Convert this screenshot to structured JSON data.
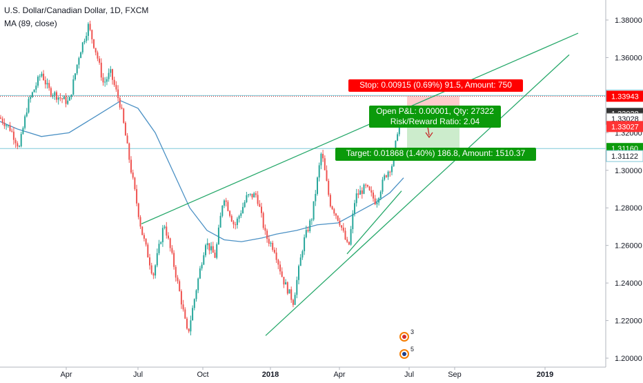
{
  "legend": {
    "title": "U.S. Dollar/Canadian Dollar, 1D, FXCM",
    "indicator": "MA (89, close)"
  },
  "colors": {
    "up": "#26a69a",
    "down": "#ef5350",
    "ma": "#4a90c4",
    "trendline": "#26a86a",
    "hline": "#7fc8d8",
    "stop_box": "#ff0000",
    "profit_box": "#0b9a0b",
    "last_price": "#333333"
  },
  "chart_data": {
    "type": "candlestick",
    "symbol": "USDCAD",
    "timeframe": "1D",
    "source": "FXCM",
    "x_ticks": [
      "Apr",
      "Jul",
      "Oct",
      "2018",
      "Apr",
      "Jul",
      "Sep",
      "2019"
    ],
    "y_ticks": [
      "1.38000",
      "1.36000",
      "1.34000",
      "1.32000",
      "1.30000",
      "1.28000",
      "1.26000",
      "1.24000",
      "1.22000",
      "1.20000"
    ],
    "ylim": [
      1.195,
      1.393
    ],
    "price_path": [
      [
        0,
        1.328
      ],
      [
        15,
        1.322
      ],
      [
        28,
        1.312
      ],
      [
        40,
        1.335
      ],
      [
        60,
        1.352
      ],
      [
        70,
        1.343
      ],
      [
        85,
        1.339
      ],
      [
        100,
        1.336
      ],
      [
        115,
        1.362
      ],
      [
        128,
        1.377
      ],
      [
        140,
        1.362
      ],
      [
        150,
        1.346
      ],
      [
        160,
        1.352
      ],
      [
        175,
        1.334
      ],
      [
        190,
        1.3
      ],
      [
        205,
        1.268
      ],
      [
        222,
        1.244
      ],
      [
        238,
        1.272
      ],
      [
        250,
        1.253
      ],
      [
        262,
        1.232
      ],
      [
        272,
        1.212
      ],
      [
        285,
        1.238
      ],
      [
        298,
        1.262
      ],
      [
        312,
        1.254
      ],
      [
        324,
        1.287
      ],
      [
        340,
        1.27
      ],
      [
        358,
        1.286
      ],
      [
        372,
        1.287
      ],
      [
        385,
        1.265
      ],
      [
        398,
        1.258
      ],
      [
        410,
        1.242
      ],
      [
        425,
        1.23
      ],
      [
        440,
        1.262
      ],
      [
        452,
        1.275
      ],
      [
        466,
        1.31
      ],
      [
        478,
        1.283
      ],
      [
        492,
        1.273
      ],
      [
        505,
        1.258
      ],
      [
        515,
        1.286
      ],
      [
        530,
        1.291
      ],
      [
        545,
        1.283
      ],
      [
        558,
        1.297
      ],
      [
        570,
        1.304
      ],
      [
        576,
        1.321
      ],
      [
        583,
        1.331
      ],
      [
        588,
        1.33
      ]
    ],
    "ma_points": [
      [
        0,
        1.326
      ],
      [
        25,
        1.322
      ],
      [
        60,
        1.318
      ],
      [
        100,
        1.32
      ],
      [
        140,
        1.329
      ],
      [
        175,
        1.337
      ],
      [
        200,
        1.333
      ],
      [
        225,
        1.32
      ],
      [
        250,
        1.3
      ],
      [
        275,
        1.28
      ],
      [
        300,
        1.268
      ],
      [
        325,
        1.263
      ],
      [
        350,
        1.262
      ],
      [
        380,
        1.264
      ],
      [
        400,
        1.266
      ],
      [
        430,
        1.268
      ],
      [
        460,
        1.271
      ],
      [
        490,
        1.272
      ],
      [
        520,
        1.278
      ],
      [
        545,
        1.283
      ],
      [
        565,
        1.288
      ],
      [
        585,
        1.296
      ]
    ],
    "trendlines": [
      {
        "name": "upper-channel-line",
        "from": [
          205,
          1.2715
        ],
        "to": [
          838,
          1.373
        ]
      },
      {
        "name": "lower-channel-line",
        "from": [
          385,
          1.212
        ],
        "to": [
          825,
          1.3615
        ]
      },
      {
        "name": "rising-support-line",
        "from": [
          503,
          1.2555
        ],
        "to": [
          582,
          1.289
        ]
      }
    ],
    "horizontal_lines": [
      1.33981,
      1.3116
    ],
    "last_price_line": 1.33943,
    "position": {
      "type": "short",
      "entry": 1.33028,
      "stop": 1.33943,
      "target": 1.3116,
      "x_start": 590,
      "x_end": 666,
      "stop_label": "Stop: 0.00915 (0.69%) 91.5, Amount: 750",
      "open_pl_label": "Open P&L: 0.00001, Qty: 27322",
      "ratio_label": "Risk/Reward Ratio: 2.04",
      "target_label": "Target: 0.01868 (1.40%) 186.8, Amount: 1510.37"
    },
    "price_labels": [
      {
        "value": "1.33981",
        "price": 1.33981,
        "bg": "#ffffff",
        "fg": "#131722",
        "border": "#7fc8d8"
      },
      {
        "value": "1.33943",
        "price": 1.33943,
        "bg": "#ff0000",
        "fg": "#ffffff"
      },
      {
        "value": "1.33028",
        "price": 1.33028,
        "bg": "#333333",
        "fg": "#ffffff"
      },
      {
        "value": "1.33028",
        "price": 1.3274,
        "bg": "#ffffff",
        "fg": "#131722",
        "border": "#999999"
      },
      {
        "value": "1.33027",
        "price": 1.3233,
        "bg": "#ff3333",
        "fg": "#ffffff"
      },
      {
        "value": "1.31160",
        "price": 1.3116,
        "bg": "#0b9a0b",
        "fg": "#ffffff"
      },
      {
        "value": "1.31122",
        "price": 1.3076,
        "bg": "#ffffff",
        "fg": "#131722",
        "border": "#7fc8d8"
      }
    ],
    "events": [
      {
        "name": "canada-event-icon",
        "count": "3",
        "x": 586,
        "y": 488
      },
      {
        "name": "us-event-icon",
        "count": "5",
        "x": 586,
        "y": 513
      }
    ]
  }
}
